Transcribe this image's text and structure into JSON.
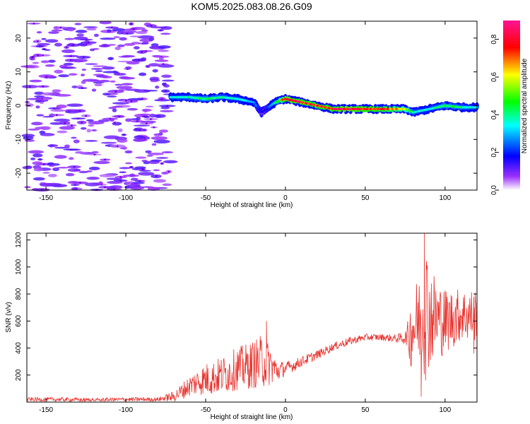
{
  "title": "KOM5.2025.083.08.26.G09",
  "chart_data": [
    {
      "type": "heatmap",
      "title": "KOM5.2025.083.08.26.G09",
      "xlabel": "Height of straight line (km)",
      "ylabel": "Frequency (Hz)",
      "xlim": [
        -162,
        120
      ],
      "ylim": [
        -25,
        25
      ],
      "xticks": [
        -150,
        -100,
        -50,
        0,
        50,
        100
      ],
      "yticks": [
        -20,
        -10,
        0,
        10,
        20
      ],
      "grid": false,
      "colorbar": {
        "label": "Normalized spectral amplitude",
        "range": [
          0,
          0.9
        ],
        "ticks": [
          "0.0",
          "0.2",
          "0.4",
          "0.6",
          "0.8"
        ],
        "colormap": "rainbow",
        "colors": [
          "#ffffff",
          "#8a2be2",
          "#0000ff",
          "#00ffff",
          "#00ff00",
          "#ffff00",
          "#ff0000",
          "#ff1493"
        ]
      },
      "ridge": {
        "x": [
          -72,
          -60,
          -50,
          -40,
          -30,
          -20,
          -15,
          -12,
          -8,
          -4,
          0,
          10,
          20,
          30,
          40,
          50,
          60,
          70,
          75,
          80,
          85,
          90,
          100,
          110,
          120
        ],
        "y": [
          2.5,
          2.5,
          2.0,
          2.5,
          2.0,
          1.0,
          -2.0,
          -1.0,
          0.5,
          1.5,
          2.0,
          1.0,
          0.0,
          -1.0,
          -1.0,
          -1.0,
          -1.0,
          -1.0,
          -1.0,
          -2.0,
          -1.5,
          -1.0,
          0.0,
          -0.5,
          -0.5
        ],
        "amplitude": [
          0.35,
          0.4,
          0.45,
          0.4,
          0.35,
          0.3,
          0.15,
          0.2,
          0.3,
          0.5,
          0.85,
          0.8,
          0.75,
          0.8,
          0.85,
          0.8,
          0.75,
          0.7,
          0.6,
          0.4,
          0.35,
          0.35,
          0.45,
          0.4,
          0.35
        ]
      },
      "noise_region_x": [
        -162,
        -72
      ]
    },
    {
      "type": "line",
      "xlabel": "Height of straight line (km)",
      "ylabel": "SNR (v/v)",
      "xlim": [
        -162,
        120
      ],
      "ylim": [
        0,
        1250
      ],
      "xticks": [
        -150,
        -100,
        -50,
        0,
        50,
        100
      ],
      "yticks": [
        200,
        400,
        600,
        800,
        1000,
        1200
      ],
      "grid": false,
      "color": "#e8332e",
      "series": [
        {
          "x": [
            -162,
            -140,
            -120,
            -100,
            -80,
            -70,
            -65,
            -60,
            -55,
            -50,
            -45,
            -40,
            -35,
            -30,
            -25,
            -20,
            -15,
            -10,
            -5,
            0,
            5,
            10,
            20,
            30,
            40,
            50,
            60,
            70,
            76,
            78,
            80,
            85,
            88,
            90,
            95,
            100,
            105,
            110,
            115,
            120
          ],
          "y": [
            20,
            20,
            15,
            20,
            20,
            40,
            80,
            120,
            150,
            170,
            180,
            200,
            220,
            250,
            260,
            280,
            300,
            280,
            230,
            250,
            270,
            300,
            350,
            410,
            450,
            480,
            480,
            470,
            480,
            500,
            560,
            620,
            700,
            650,
            620,
            600,
            620,
            650,
            640,
            650
          ],
          "y_spread": [
            15,
            15,
            15,
            15,
            15,
            40,
            60,
            80,
            100,
            120,
            130,
            140,
            150,
            160,
            170,
            180,
            200,
            160,
            80,
            50,
            45,
            40,
            35,
            30,
            30,
            25,
            25,
            30,
            60,
            250,
            300,
            350,
            550,
            400,
            300,
            250,
            220,
            200,
            200,
            200
          ]
        }
      ],
      "spikes": [
        {
          "x": -12,
          "y": 600
        },
        {
          "x": 87,
          "y": 1250
        },
        {
          "x": 85,
          "y": 40
        },
        {
          "x": 118,
          "y": 360
        }
      ]
    }
  ]
}
